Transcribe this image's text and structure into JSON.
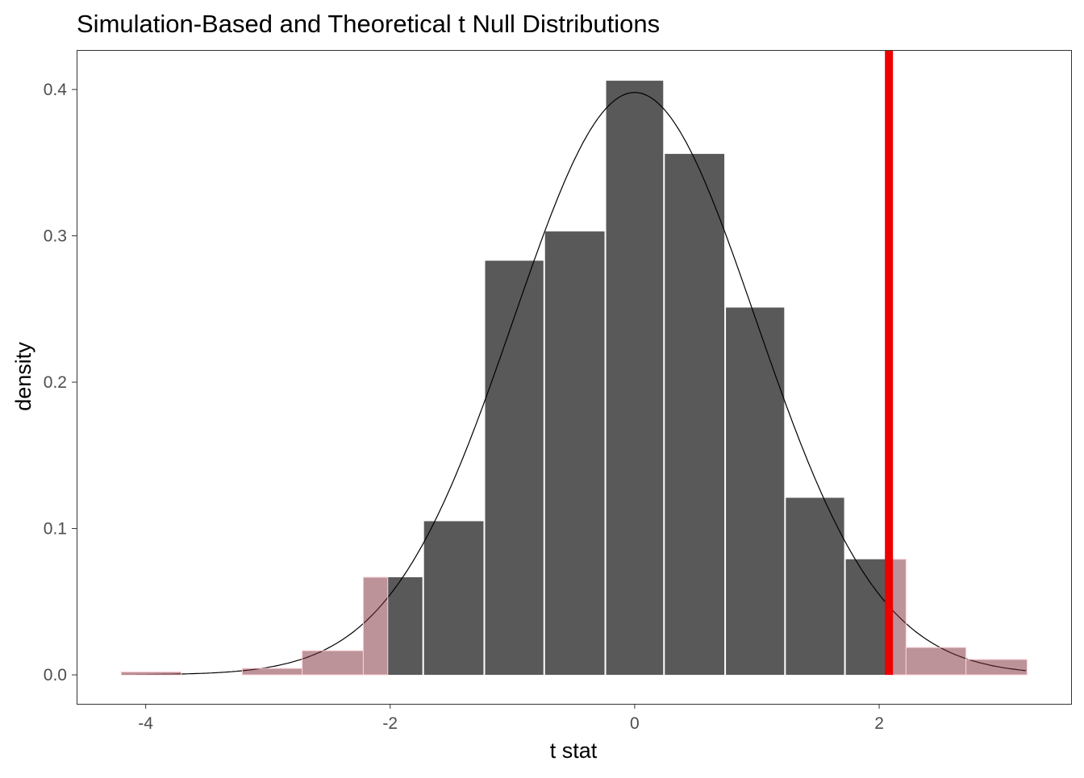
{
  "chart_data": {
    "type": "bar",
    "title": "Simulation-Based and Theoretical t Null Distributions",
    "xlabel": "t stat",
    "ylabel": "density",
    "xlim": [
      -4.565,
      3.57
    ],
    "ylim": [
      -0.0198,
      0.427
    ],
    "x_ticks": [
      {
        "value": -4,
        "label": "-4"
      },
      {
        "value": -2,
        "label": "-2"
      },
      {
        "value": 0,
        "label": "0"
      },
      {
        "value": 2,
        "label": "2"
      }
    ],
    "y_ticks": [
      {
        "value": 0.0,
        "label": "0.0"
      },
      {
        "value": 0.1,
        "label": "0.1"
      },
      {
        "value": 0.2,
        "label": "0.2"
      },
      {
        "value": 0.3,
        "label": "0.3"
      },
      {
        "value": 0.4,
        "label": "0.4"
      }
    ],
    "grid": false,
    "bins": [
      {
        "x0": -4.2,
        "x1": -3.71,
        "density": 0.002
      },
      {
        "x0": -3.71,
        "x1": -3.21,
        "density": 0.0
      },
      {
        "x0": -3.21,
        "x1": -2.72,
        "density": 0.0044
      },
      {
        "x0": -2.72,
        "x1": -2.22,
        "density": 0.0165
      },
      {
        "x0": -2.22,
        "x1": -1.73,
        "density": 0.0667
      },
      {
        "x0": -1.73,
        "x1": -1.23,
        "density": 0.105
      },
      {
        "x0": -1.23,
        "x1": -0.74,
        "density": 0.283
      },
      {
        "x0": -0.74,
        "x1": -0.24,
        "density": 0.303
      },
      {
        "x0": -0.24,
        "x1": 0.24,
        "density": 0.406
      },
      {
        "x0": 0.24,
        "x1": 0.74,
        "density": 0.356
      },
      {
        "x0": 0.74,
        "x1": 1.23,
        "density": 0.251
      },
      {
        "x0": 1.23,
        "x1": 1.72,
        "density": 0.121
      },
      {
        "x0": 1.72,
        "x1": 2.22,
        "density": 0.079
      },
      {
        "x0": 2.22,
        "x1": 2.71,
        "density": 0.0187
      },
      {
        "x0": 2.71,
        "x1": 3.21,
        "density": 0.0105
      }
    ],
    "theoretical_curve": {
      "distribution": "t",
      "df": 100
    },
    "shade_regions": [
      [
        -4.2,
        -2.02
      ],
      [
        2.08,
        3.21
      ]
    ],
    "observed_stat": 2.08,
    "colors": {
      "bar": "#595959",
      "bar_outline": "#ffffff",
      "shade": "rgba(121,39,51,0.5)",
      "shade_outline": "#ffd1d9",
      "observed_line": "#ee0000",
      "curve": "#000000"
    }
  }
}
